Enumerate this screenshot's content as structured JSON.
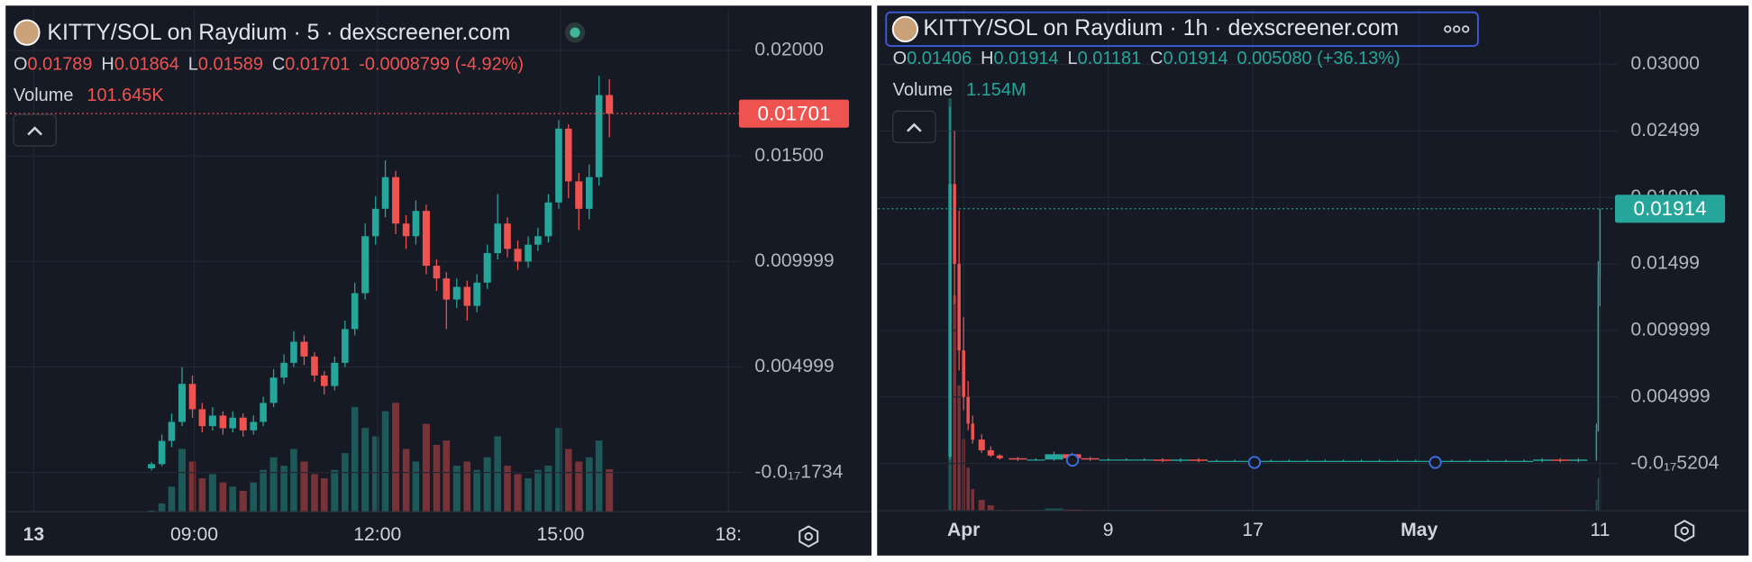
{
  "chart_data": [
    {
      "type": "candlestick",
      "title": "KITTY/SOL on Raydium · 5 · dexscreener.com",
      "ohlc_labels": [
        "O",
        "H",
        "L",
        "C"
      ],
      "change": "-0.0008799 (-4.92%)",
      "volume_label": "Volume",
      "volume_text": "101.645K",
      "x": [
        8.3,
        8.47,
        8.63,
        8.8,
        8.97,
        9.13,
        9.3,
        9.47,
        9.63,
        9.8,
        9.97,
        10.13,
        10.3,
        10.47,
        10.63,
        10.8,
        10.97,
        11.13,
        11.3,
        11.47,
        11.63,
        11.8,
        11.97,
        12.13,
        12.3,
        12.47,
        12.63,
        12.8,
        12.97,
        13.13,
        13.3,
        13.47,
        13.63,
        13.8,
        13.97,
        14.13,
        14.3,
        14.47,
        14.63,
        14.8,
        14.97,
        15.13,
        15.3,
        15.47,
        15.63,
        15.8
      ],
      "open": [
        0.0002,
        0.0004,
        0.0015,
        0.0024,
        0.0042,
        0.003,
        0.0022,
        0.0027,
        0.0021,
        0.0026,
        0.002,
        0.0024,
        0.0033,
        0.0045,
        0.0052,
        0.0062,
        0.0055,
        0.0046,
        0.0041,
        0.0052,
        0.0068,
        0.0085,
        0.0112,
        0.0125,
        0.014,
        0.0118,
        0.0112,
        0.0124,
        0.0098,
        0.0092,
        0.0082,
        0.0088,
        0.0079,
        0.009,
        0.0104,
        0.0118,
        0.0106,
        0.01,
        0.0108,
        0.0112,
        0.0128,
        0.0163,
        0.0138,
        0.0125,
        0.014,
        0.01789
      ],
      "high": [
        0.0005,
        0.0018,
        0.0028,
        0.005,
        0.0046,
        0.0033,
        0.0031,
        0.0029,
        0.0029,
        0.0028,
        0.0027,
        0.0036,
        0.0049,
        0.0056,
        0.0067,
        0.0065,
        0.0057,
        0.0048,
        0.0055,
        0.0072,
        0.009,
        0.0118,
        0.0131,
        0.0148,
        0.0143,
        0.0122,
        0.0129,
        0.0127,
        0.0101,
        0.0095,
        0.0092,
        0.0091,
        0.0094,
        0.0108,
        0.0132,
        0.0121,
        0.011,
        0.0112,
        0.0116,
        0.0132,
        0.0167,
        0.0165,
        0.0142,
        0.0146,
        0.0188,
        0.01864
      ],
      "low": [
        0.0001,
        0.0003,
        0.0012,
        0.0022,
        0.0026,
        0.0019,
        0.002,
        0.0018,
        0.0019,
        0.0017,
        0.0018,
        0.0022,
        0.0031,
        0.0042,
        0.005,
        0.0051,
        0.0043,
        0.0037,
        0.0039,
        0.005,
        0.0065,
        0.0082,
        0.0108,
        0.0121,
        0.0113,
        0.0106,
        0.0108,
        0.0094,
        0.0086,
        0.0068,
        0.0078,
        0.0072,
        0.0076,
        0.0087,
        0.0101,
        0.0102,
        0.0096,
        0.0097,
        0.0105,
        0.0109,
        0.0125,
        0.013,
        0.0115,
        0.012,
        0.0136,
        0.01589
      ],
      "close": [
        0.0004,
        0.0015,
        0.0024,
        0.0042,
        0.003,
        0.0022,
        0.0027,
        0.0021,
        0.0026,
        0.002,
        0.0024,
        0.0033,
        0.0045,
        0.0052,
        0.0062,
        0.0055,
        0.0046,
        0.0041,
        0.0052,
        0.0068,
        0.0085,
        0.0112,
        0.0125,
        0.014,
        0.0118,
        0.0112,
        0.0124,
        0.0098,
        0.0092,
        0.0082,
        0.0088,
        0.0079,
        0.009,
        0.0104,
        0.0118,
        0.0106,
        0.01,
        0.0108,
        0.0112,
        0.0128,
        0.0163,
        0.0138,
        0.0125,
        0.014,
        0.01789,
        0.01701
      ],
      "volume": [
        3000,
        20000,
        60000,
        150000,
        120000,
        80000,
        90000,
        70000,
        60000,
        50000,
        70000,
        100000,
        130000,
        110000,
        150000,
        120000,
        90000,
        80000,
        100000,
        140000,
        250000,
        200000,
        180000,
        240000,
        260000,
        150000,
        120000,
        210000,
        160000,
        170000,
        110000,
        120000,
        100000,
        130000,
        180000,
        110000,
        90000,
        80000,
        100000,
        110000,
        200000,
        150000,
        120000,
        130000,
        170000,
        101645
      ],
      "vlim": [
        0,
        1200000
      ],
      "xlim": [
        5.91,
        17.96
      ],
      "xticks": [
        {
          "value": 6.37,
          "label": "13"
        },
        {
          "value": 9,
          "label": "09:00"
        },
        {
          "value": 12,
          "label": "12:00"
        },
        {
          "value": 15,
          "label": "15:00"
        },
        {
          "value": 17.75,
          "label": "18:"
        }
      ],
      "ylim": [
        -0.00186,
        0.02197
      ],
      "yticks": [
        {
          "value": -1.734e-18,
          "label": "-0.0₁₇1734"
        },
        0.004999,
        0.009999,
        {
          "value": 0.015,
          "label": "0.01500"
        },
        {
          "value": 0.02,
          "label": "0.02000"
        }
      ],
      "up_color": "#26a69a",
      "down_color": "#ef5350",
      "grid": true
    },
    {
      "type": "candlestick",
      "title": "KITTY/SOL on Raydium · 1h · dexscreener.com",
      "ohlc_labels": [
        "O",
        "H",
        "L",
        "C"
      ],
      "change": "0.005080 (+36.13%)",
      "volume_label": "Volume",
      "volume_text": "1.154M",
      "x": [
        -0.75,
        -0.5,
        -0.25,
        0,
        0.25,
        0.5,
        1,
        1.5,
        2,
        3,
        4,
        5,
        6,
        7,
        8,
        9,
        10,
        11,
        12,
        13,
        14,
        15,
        16,
        17,
        18,
        19,
        20,
        21,
        22,
        23,
        24,
        25,
        26,
        27,
        28,
        29,
        30,
        31,
        32,
        33,
        34,
        35,
        35.1,
        35.2
      ],
      "open": [
        0.0005,
        0.021,
        0.015,
        0.0085,
        0.005,
        0.003,
        0.0018,
        0.001,
        0.0006,
        0.0004,
        0.0003,
        0.0003,
        0.0007,
        0.0004,
        0.0003,
        0.0003,
        0.0003,
        0.0003,
        0.0002,
        0.0003,
        0.0002,
        0.0002,
        0.0002,
        0.0002,
        0.0002,
        0.0002,
        0.0002,
        0.0002,
        0.0002,
        0.0002,
        0.0002,
        0.0002,
        0.0002,
        0.0002,
        0.0002,
        0.0002,
        0.0002,
        0.0002,
        0.0002,
        0.0003,
        0.0002,
        0.0003,
        0.0025,
        0.01406
      ],
      "high": [
        0.0268,
        0.025,
        0.019,
        0.011,
        0.0062,
        0.0036,
        0.0022,
        0.0013,
        0.0007,
        0.0005,
        0.0004,
        0.0009,
        0.0008,
        0.0005,
        0.0004,
        0.0004,
        0.0004,
        0.0004,
        0.0004,
        0.0004,
        0.0003,
        0.0003,
        0.0003,
        0.0003,
        0.0003,
        0.0003,
        0.0003,
        0.0003,
        0.0003,
        0.0003,
        0.0003,
        0.0003,
        0.0003,
        0.0003,
        0.0003,
        0.0003,
        0.0003,
        0.0003,
        0.0004,
        0.0004,
        0.0004,
        0.003,
        0.0152,
        0.01914
      ],
      "low": [
        0.0003,
        0.012,
        0.007,
        0.004,
        0.0025,
        0.0015,
        0.0008,
        0.0005,
        0.0003,
        0.0002,
        0.0002,
        0.0002,
        0.0003,
        0.0002,
        0.0002,
        0.0002,
        0.0002,
        0.0001,
        0.0001,
        0.0001,
        0.0001,
        0.0001,
        0.0001,
        0.0001,
        0.0001,
        0.0001,
        0.0001,
        0.0001,
        0.0001,
        0.0001,
        0.0001,
        0.0001,
        0.0001,
        0.0001,
        0.0001,
        0.0001,
        0.0001,
        0.0001,
        0.0001,
        0.0001,
        0.0001,
        0.0002,
        0.0024,
        0.01181
      ],
      "close": [
        0.021,
        0.015,
        0.0085,
        0.005,
        0.003,
        0.0018,
        0.001,
        0.0006,
        0.0004,
        0.0003,
        0.0003,
        0.0007,
        0.0004,
        0.0003,
        0.0003,
        0.0003,
        0.0003,
        0.0002,
        0.0003,
        0.0002,
        0.0002,
        0.0002,
        0.0002,
        0.0002,
        0.0002,
        0.0002,
        0.0002,
        0.0002,
        0.0002,
        0.0002,
        0.0002,
        0.0002,
        0.0002,
        0.0002,
        0.0002,
        0.0002,
        0.0002,
        0.0002,
        0.0003,
        0.0002,
        0.0003,
        0.0025,
        0.01406,
        0.01914
      ],
      "volume": [
        11500000,
        6000000,
        3500000,
        2000000,
        1200000,
        600000,
        300000,
        150000,
        20000,
        20000,
        20000,
        60000,
        30000,
        20000,
        20000,
        20000,
        20000,
        20000,
        20000,
        20000,
        20000,
        20000,
        20000,
        20000,
        20000,
        20000,
        20000,
        20000,
        20000,
        20000,
        20000,
        20000,
        20000,
        20000,
        20000,
        20000,
        20000,
        20000,
        20000,
        20000,
        20000,
        300000,
        900000,
        1154000
      ],
      "vlim": [
        0,
        14000000
      ],
      "xlim": [
        -4.72,
        36.15
      ],
      "xticks": [
        {
          "value": 0,
          "label": "Apr"
        },
        {
          "value": 8,
          "label": "9"
        },
        {
          "value": 16,
          "label": "17"
        },
        {
          "value": 25.2,
          "label": "May"
        },
        {
          "value": 35.2,
          "label": "11"
        }
      ],
      "ylim": [
        -0.00354,
        0.03415
      ],
      "yticks": [
        {
          "value": -5.204e-18,
          "label": "-0.0₁₇5204"
        },
        0.004999,
        0.009999,
        0.01499,
        0.01999,
        0.02499,
        {
          "value": 0.03,
          "label": "0.03000"
        }
      ],
      "up_color": "#26a69a",
      "down_color": "#ef5350",
      "grid": true
    }
  ]
}
